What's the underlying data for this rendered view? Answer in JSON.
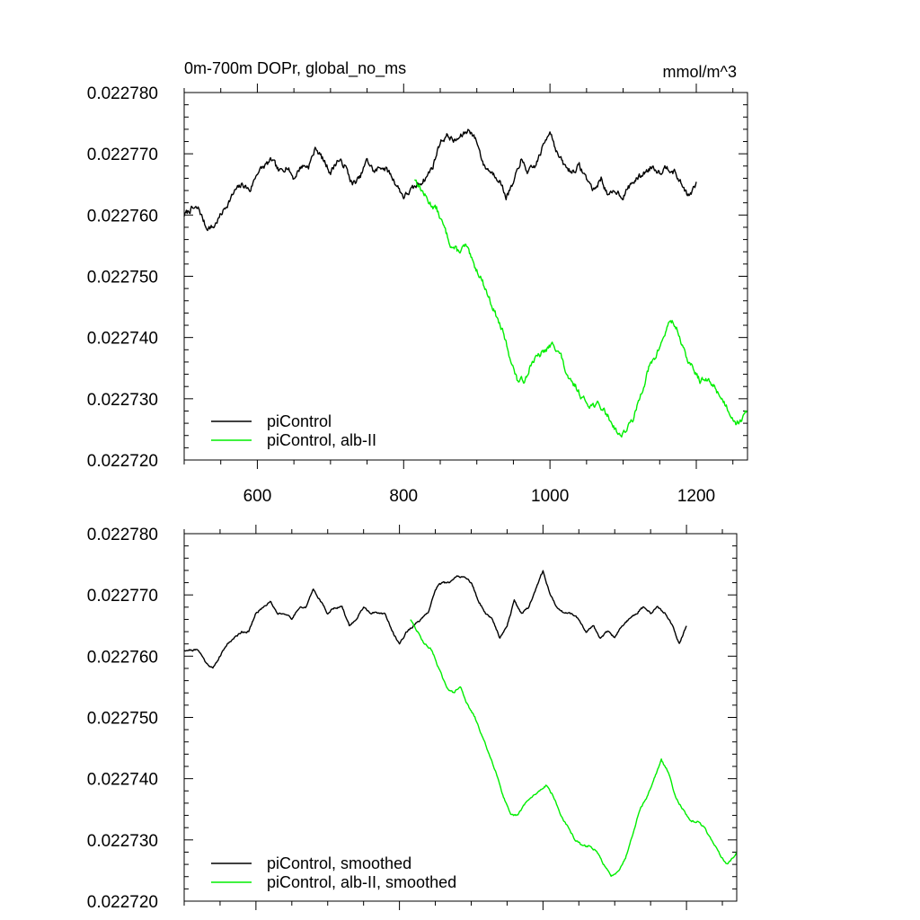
{
  "chart_data": [
    {
      "type": "line",
      "title": "0m-700m DOPr, global_no_ms",
      "units": "mmol/m^3",
      "xlim": [
        500,
        1270
      ],
      "ylim": [
        0.02272,
        0.02278
      ],
      "x_ticks": [
        600,
        800,
        1000,
        1200
      ],
      "x_tick_labels": [
        "600",
        "800",
        "1000",
        "1200"
      ],
      "show_x_tick_labels": true,
      "y_ticks": [
        0.02272,
        0.02273,
        0.02274,
        0.02275,
        0.02276,
        0.02277,
        0.02278
      ],
      "y_tick_labels": [
        "0.022720",
        "0.022730",
        "0.022740",
        "0.022750",
        "0.022760",
        "0.022770",
        "0.022780"
      ],
      "legend_position": "bottom-left",
      "series": [
        {
          "name": "piControl",
          "color": "#000000",
          "noise": 9e-07,
          "seed": 7,
          "x": [
            500,
            510,
            520,
            530,
            540,
            550,
            560,
            570,
            580,
            590,
            600,
            610,
            620,
            630,
            640,
            650,
            660,
            670,
            680,
            690,
            700,
            710,
            720,
            730,
            740,
            750,
            760,
            770,
            780,
            790,
            800,
            810,
            820,
            830,
            840,
            850,
            860,
            870,
            880,
            890,
            900,
            910,
            920,
            930,
            940,
            950,
            960,
            970,
            980,
            990,
            1000,
            1010,
            1020,
            1030,
            1040,
            1050,
            1060,
            1070,
            1080,
            1090,
            1100,
            1110,
            1120,
            1130,
            1140,
            1150,
            1160,
            1170,
            1180,
            1190,
            1200
          ],
          "values": [
            0.02276,
            0.022761,
            0.022761,
            0.022758,
            0.022758,
            0.02276,
            0.022762,
            0.022764,
            0.022765,
            0.022764,
            0.022767,
            0.022768,
            0.022769,
            0.022767,
            0.022768,
            0.022766,
            0.022768,
            0.022768,
            0.022771,
            0.022769,
            0.022767,
            0.022769,
            0.022768,
            0.022765,
            0.022766,
            0.022769,
            0.022767,
            0.022768,
            0.022767,
            0.022765,
            0.022763,
            0.022764,
            0.022765,
            0.022766,
            0.022768,
            0.022772,
            0.022773,
            0.022772,
            0.022773,
            0.022774,
            0.022772,
            0.022768,
            0.022767,
            0.022766,
            0.022763,
            0.022765,
            0.022769,
            0.022767,
            0.022768,
            0.022771,
            0.022774,
            0.02277,
            0.022768,
            0.022767,
            0.022768,
            0.022766,
            0.022764,
            0.022766,
            0.022763,
            0.022764,
            0.022763,
            0.022765,
            0.022766,
            0.022767,
            0.022768,
            0.022767,
            0.022768,
            0.022767,
            0.022765,
            0.022763,
            0.022765
          ]
        },
        {
          "name": "piControl, alb-II",
          "color": "#00ee00",
          "noise": 9e-07,
          "seed": 13,
          "x": [
            815,
            825,
            835,
            845,
            855,
            865,
            875,
            885,
            895,
            905,
            915,
            925,
            935,
            945,
            955,
            965,
            975,
            985,
            995,
            1005,
            1015,
            1025,
            1035,
            1045,
            1055,
            1065,
            1075,
            1085,
            1095,
            1105,
            1115,
            1125,
            1135,
            1145,
            1155,
            1165,
            1175,
            1185,
            1195,
            1205,
            1215,
            1225,
            1235,
            1245,
            1255,
            1265,
            1270
          ],
          "values": [
            0.022766,
            0.022764,
            0.022762,
            0.022761,
            0.022758,
            0.022755,
            0.022754,
            0.022755,
            0.022752,
            0.02275,
            0.022747,
            0.022744,
            0.022741,
            0.022737,
            0.022733,
            0.022733,
            0.022736,
            0.022737,
            0.022738,
            0.022739,
            0.022737,
            0.022733,
            0.022732,
            0.02273,
            0.022729,
            0.022729,
            0.022728,
            0.022726,
            0.022724,
            0.022725,
            0.022727,
            0.022731,
            0.022735,
            0.022737,
            0.02274,
            0.022743,
            0.022741,
            0.022737,
            0.022735,
            0.022733,
            0.022733,
            0.022732,
            0.02273,
            0.022728,
            0.022726,
            0.022727,
            0.022728
          ]
        }
      ]
    },
    {
      "type": "line",
      "title": "",
      "units": "",
      "xlim": [
        500,
        1270
      ],
      "ylim": [
        0.02272,
        0.02278
      ],
      "x_ticks": [
        600,
        800,
        1000,
        1200
      ],
      "x_tick_labels": [],
      "show_x_tick_labels": false,
      "y_ticks": [
        0.02272,
        0.02273,
        0.02274,
        0.02275,
        0.02276,
        0.02277,
        0.02278
      ],
      "y_tick_labels": [
        "0.022720",
        "0.022730",
        "0.022740",
        "0.022750",
        "0.022760",
        "0.022770",
        "0.022780"
      ],
      "legend_position": "bottom-left",
      "series": [
        {
          "name": "piControl, smoothed",
          "color": "#000000",
          "noise": 3e-07,
          "seed": 21,
          "x": [
            500,
            510,
            520,
            530,
            540,
            550,
            560,
            570,
            580,
            590,
            600,
            610,
            620,
            630,
            640,
            650,
            660,
            670,
            680,
            690,
            700,
            710,
            720,
            730,
            740,
            750,
            760,
            770,
            780,
            790,
            800,
            810,
            820,
            830,
            840,
            850,
            860,
            870,
            880,
            890,
            900,
            910,
            920,
            930,
            940,
            950,
            960,
            970,
            980,
            990,
            1000,
            1010,
            1020,
            1030,
            1040,
            1050,
            1060,
            1070,
            1080,
            1090,
            1100,
            1110,
            1120,
            1130,
            1140,
            1150,
            1160,
            1170,
            1180,
            1190,
            1200
          ],
          "values": [
            0.022761,
            0.022761,
            0.022761,
            0.022759,
            0.022758,
            0.02276,
            0.022762,
            0.022763,
            0.022764,
            0.022764,
            0.022767,
            0.022768,
            0.022769,
            0.022767,
            0.022767,
            0.022766,
            0.022768,
            0.022768,
            0.022771,
            0.022769,
            0.022767,
            0.022768,
            0.022768,
            0.022765,
            0.022766,
            0.022768,
            0.022767,
            0.022767,
            0.022767,
            0.022764,
            0.022762,
            0.022764,
            0.022765,
            0.022766,
            0.022767,
            0.022771,
            0.022772,
            0.022772,
            0.022773,
            0.022773,
            0.022772,
            0.022769,
            0.022767,
            0.022766,
            0.022763,
            0.022765,
            0.022769,
            0.022767,
            0.022768,
            0.022771,
            0.022774,
            0.02277,
            0.022768,
            0.022767,
            0.022767,
            0.022766,
            0.022764,
            0.022765,
            0.022763,
            0.022764,
            0.022763,
            0.022765,
            0.022766,
            0.022767,
            0.022768,
            0.022767,
            0.022768,
            0.022767,
            0.022765,
            0.022762,
            0.022765
          ]
        },
        {
          "name": "piControl, alb-II, smoothed",
          "color": "#00ee00",
          "noise": 3e-07,
          "seed": 29,
          "x": [
            815,
            825,
            835,
            845,
            855,
            865,
            875,
            885,
            895,
            905,
            915,
            925,
            935,
            945,
            955,
            965,
            975,
            985,
            995,
            1005,
            1015,
            1025,
            1035,
            1045,
            1055,
            1065,
            1075,
            1085,
            1095,
            1105,
            1115,
            1125,
            1135,
            1145,
            1155,
            1165,
            1175,
            1185,
            1195,
            1205,
            1215,
            1225,
            1235,
            1245,
            1255,
            1265,
            1270
          ],
          "values": [
            0.022766,
            0.022764,
            0.022762,
            0.022761,
            0.022758,
            0.022755,
            0.022754,
            0.022755,
            0.022752,
            0.02275,
            0.022747,
            0.022744,
            0.022741,
            0.022737,
            0.022734,
            0.022734,
            0.022736,
            0.022737,
            0.022738,
            0.022739,
            0.022737,
            0.022734,
            0.022732,
            0.02273,
            0.022729,
            0.022729,
            0.022728,
            0.022726,
            0.022724,
            0.022725,
            0.022727,
            0.022731,
            0.022735,
            0.022737,
            0.02274,
            0.022743,
            0.022741,
            0.022737,
            0.022735,
            0.022733,
            0.022733,
            0.022732,
            0.02273,
            0.022728,
            0.022726,
            0.022727,
            0.022728
          ]
        }
      ]
    }
  ]
}
